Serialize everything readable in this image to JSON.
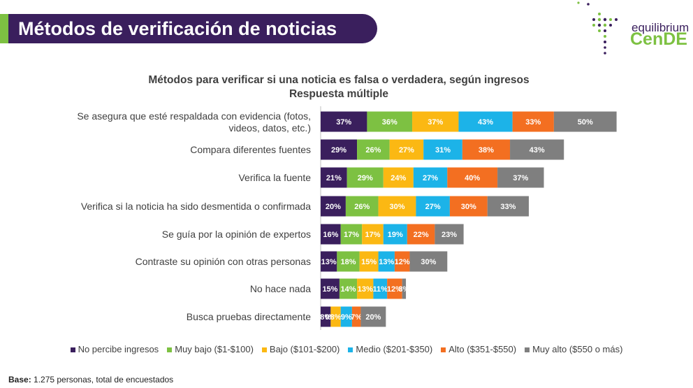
{
  "header": {
    "title": "Métodos de verificación de noticias"
  },
  "logo": {
    "top_text": "equilibrium",
    "main_text": "CenDE"
  },
  "colors": {
    "title_bar": "#3a1f5d",
    "title_accent": "#7dc142",
    "series": [
      "#3a1f5d",
      "#7dc142",
      "#fbb813",
      "#1cb3e8",
      "#f36f21",
      "#7f7f7f"
    ]
  },
  "chart_data": {
    "type": "bar",
    "orientation": "horizontal",
    "stacked": true,
    "title": "Métodos para verificar si una noticia es falsa o verdadera, según ingresos",
    "subtitle": "Respuesta múltiple",
    "categories": [
      "Se asegura que esté respaldada con evidencia (fotos, videos, datos, etc.)",
      "Compara diferentes fuentes",
      "Verifica la fuente",
      "Verifica si la noticia ha sido desmentida o confirmada",
      "Se guía por la opinión de expertos",
      "Contraste su opinión con otras personas",
      "No hace nada",
      "Busca pruebas directamente"
    ],
    "series": [
      {
        "name": "No percibe ingresos",
        "values": [
          37,
          29,
          21,
          20,
          16,
          13,
          15,
          8
        ]
      },
      {
        "name": "Muy bajo ($1-$100)",
        "values": [
          36,
          26,
          29,
          26,
          17,
          18,
          14,
          0
        ]
      },
      {
        "name": "Bajo ($101-$200)",
        "values": [
          37,
          27,
          24,
          30,
          17,
          15,
          13,
          8
        ]
      },
      {
        "name": "Medio ($201-$350)",
        "values": [
          43,
          31,
          27,
          27,
          19,
          13,
          11,
          9
        ]
      },
      {
        "name": "Alto ($351-$550)",
        "values": [
          33,
          38,
          40,
          30,
          22,
          12,
          12,
          7
        ]
      },
      {
        "name": "Muy alto ($550 o más)",
        "values": [
          50,
          43,
          37,
          33,
          23,
          30,
          3,
          20
        ]
      }
    ],
    "value_suffix": "%",
    "legend_position": "bottom"
  },
  "footer": {
    "label": "Base:",
    "text": " 1.275 personas, total de encuestados"
  }
}
